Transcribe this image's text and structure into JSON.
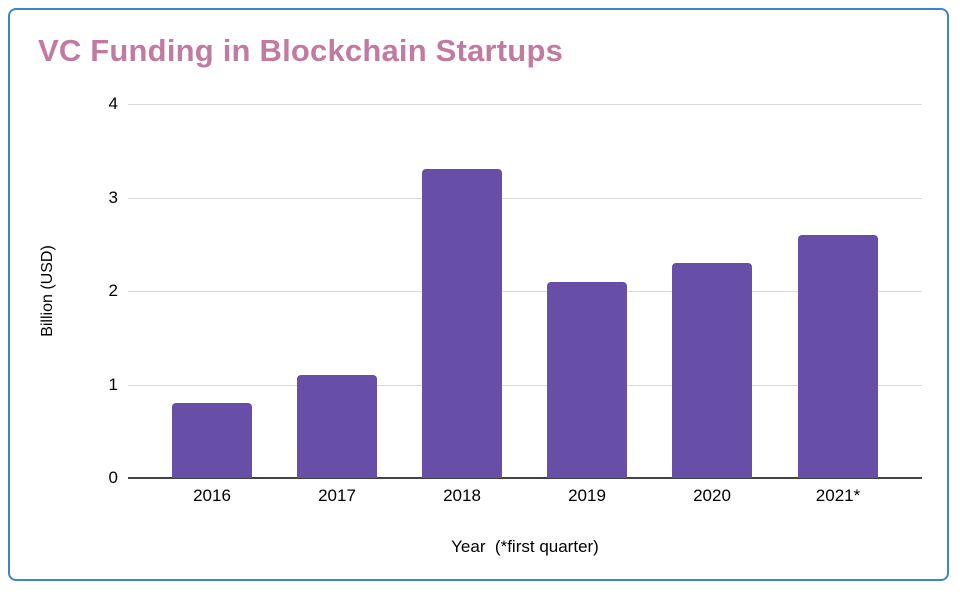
{
  "window": {
    "background": "#ffffff",
    "border_color": "#3d85c6"
  },
  "chart_data": {
    "type": "bar",
    "title": "VC Funding in Blockchain Startups",
    "title_color": "#c27ba0",
    "categories": [
      "2016",
      "2017",
      "2018",
      "2019",
      "2020",
      "2021*"
    ],
    "values": [
      0.8,
      1.1,
      3.3,
      2.1,
      2.3,
      2.6
    ],
    "xlabel": "Year  (*first quarter)",
    "ylabel": "Billion (USD)",
    "ylim": [
      0,
      4
    ],
    "yticks": [
      "0",
      "1",
      "2",
      "3",
      "4"
    ],
    "grid": true,
    "legend_position": "none",
    "bar_color": "#674ea7",
    "gridline_color": "#d9d9d9",
    "axis_line_color": "#424242",
    "tick_text_color": "#000000"
  }
}
